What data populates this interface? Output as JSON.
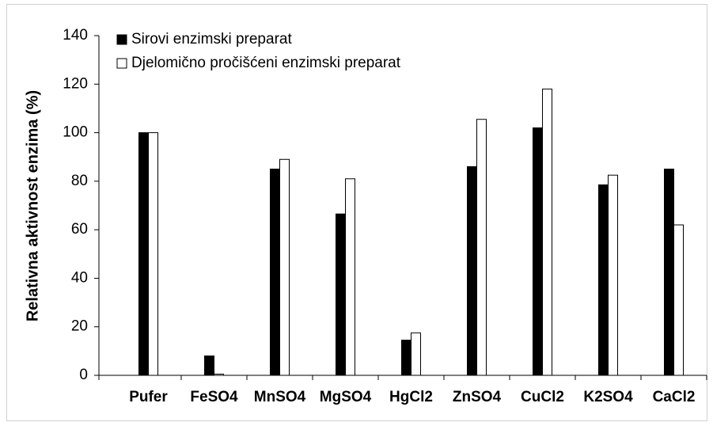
{
  "chart_data": {
    "type": "bar",
    "y_label": "Relativna aktivnost enzima (%)",
    "categories": [
      "Pufer",
      "FeSO4",
      "MnSO4",
      "MgSO4",
      "HgCl2",
      "ZnSO4",
      "CuCl2",
      "K2SO4",
      "CaCl2"
    ],
    "series": [
      {
        "name": "Sirovi enzimski preparat",
        "color": "#000000",
        "values": [
          100,
          8,
          85,
          66.5,
          14.5,
          86,
          102,
          78.5,
          85
        ]
      },
      {
        "name": "Djelomično pročišćeni enzimski preparat",
        "color": "#ffffff",
        "values": [
          100,
          0.5,
          89,
          81,
          17.5,
          105.5,
          118,
          82.5,
          62
        ]
      }
    ],
    "ylim": [
      0,
      140
    ],
    "yticks": [
      0,
      20,
      40,
      60,
      80,
      100,
      120,
      140
    ],
    "legend": "top-left"
  }
}
